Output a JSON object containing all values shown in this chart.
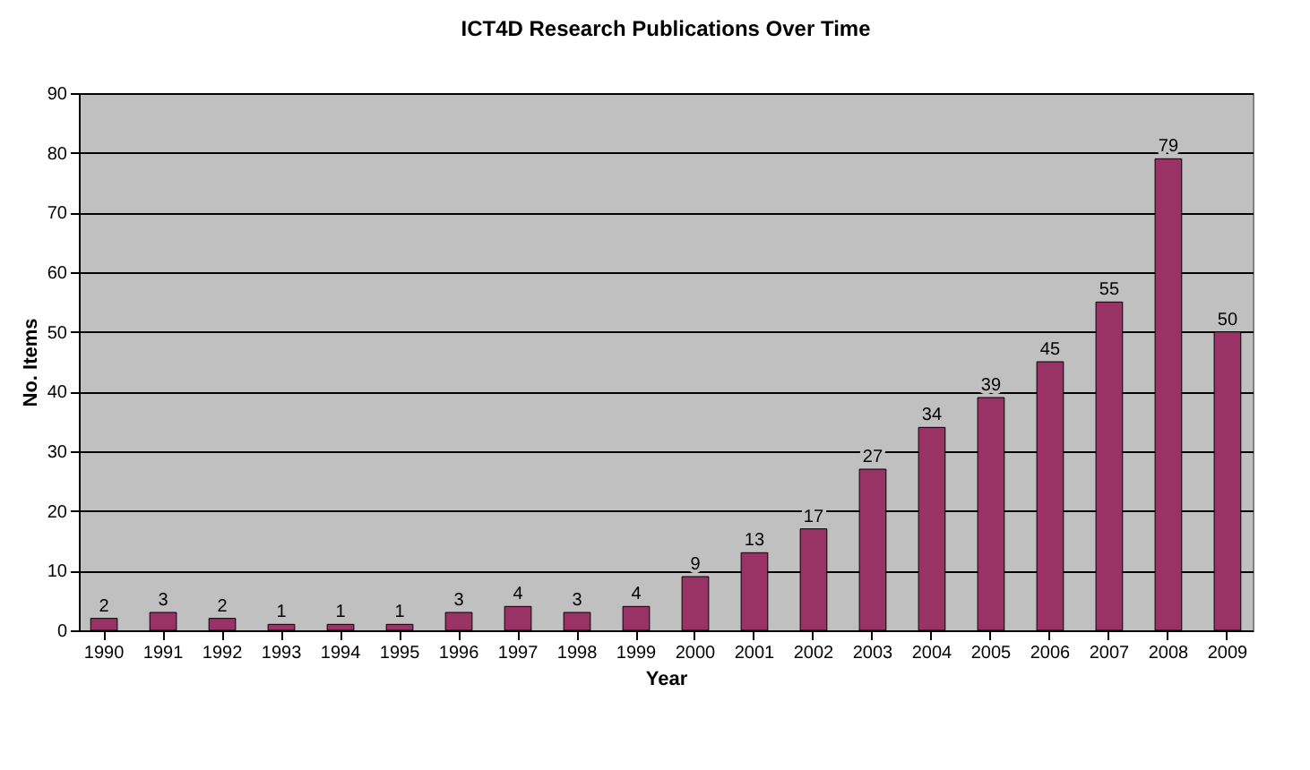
{
  "chart_data": {
    "type": "bar",
    "title": "ICT4D Research Publications Over Time",
    "xlabel": "Year",
    "ylabel": "No. Items",
    "categories": [
      "1990",
      "1991",
      "1992",
      "1993",
      "1994",
      "1995",
      "1996",
      "1997",
      "1998",
      "1999",
      "2000",
      "2001",
      "2002",
      "2003",
      "2004",
      "2005",
      "2006",
      "2007",
      "2008",
      "2009"
    ],
    "values": [
      2,
      3,
      2,
      1,
      1,
      1,
      3,
      4,
      3,
      4,
      9,
      13,
      17,
      27,
      34,
      39,
      45,
      55,
      79,
      50
    ],
    "color": "#993366",
    "ylim": [
      0,
      90
    ],
    "yticks": [
      0,
      10,
      20,
      30,
      40,
      50,
      60,
      70,
      80,
      90
    ],
    "grid": "y",
    "data_labels": true
  }
}
